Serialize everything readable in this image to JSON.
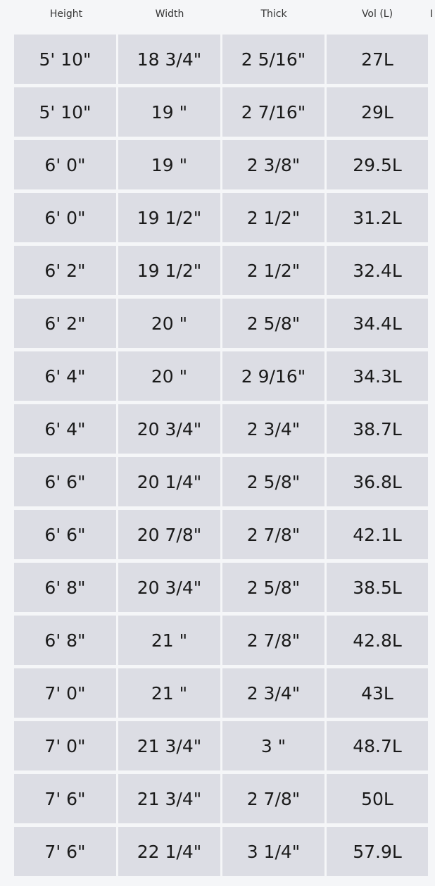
{
  "headers": [
    "Height",
    "Width",
    "Thick",
    "Vol (L)",
    "I"
  ],
  "rows": [
    [
      "5' 10\"",
      "18 3/4\"",
      "2 5/16\"",
      "27L"
    ],
    [
      "5' 10\"",
      "19 \"",
      "2 7/16\"",
      "29L"
    ],
    [
      "6' 0\"",
      "19 \"",
      "2 3/8\"",
      "29.5L"
    ],
    [
      "6' 0\"",
      "19 1/2\"",
      "2 1/2\"",
      "31.2L"
    ],
    [
      "6' 2\"",
      "19 1/2\"",
      "2 1/2\"",
      "32.4L"
    ],
    [
      "6' 2\"",
      "20 \"",
      "2 5/8\"",
      "34.4L"
    ],
    [
      "6' 4\"",
      "20 \"",
      "2 9/16\"",
      "34.3L"
    ],
    [
      "6' 4\"",
      "20 3/4\"",
      "2 3/4\"",
      "38.7L"
    ],
    [
      "6' 6\"",
      "20 1/4\"",
      "2 5/8\"",
      "36.8L"
    ],
    [
      "6' 6\"",
      "20 7/8\"",
      "2 7/8\"",
      "42.1L"
    ],
    [
      "6' 8\"",
      "20 3/4\"",
      "2 5/8\"",
      "38.5L"
    ],
    [
      "6' 8\"",
      "21 \"",
      "2 7/8\"",
      "42.8L"
    ],
    [
      "7' 0\"",
      "21 \"",
      "2 3/4\"",
      "43L"
    ],
    [
      "7' 0\"",
      "21 3/4\"",
      "3 \"",
      "48.7L"
    ],
    [
      "7' 6\"",
      "21 3/4\"",
      "2 7/8\"",
      "50L"
    ],
    [
      "7' 6\"",
      "22 1/4\"",
      "3 1/4\"",
      "57.9L"
    ]
  ]
}
